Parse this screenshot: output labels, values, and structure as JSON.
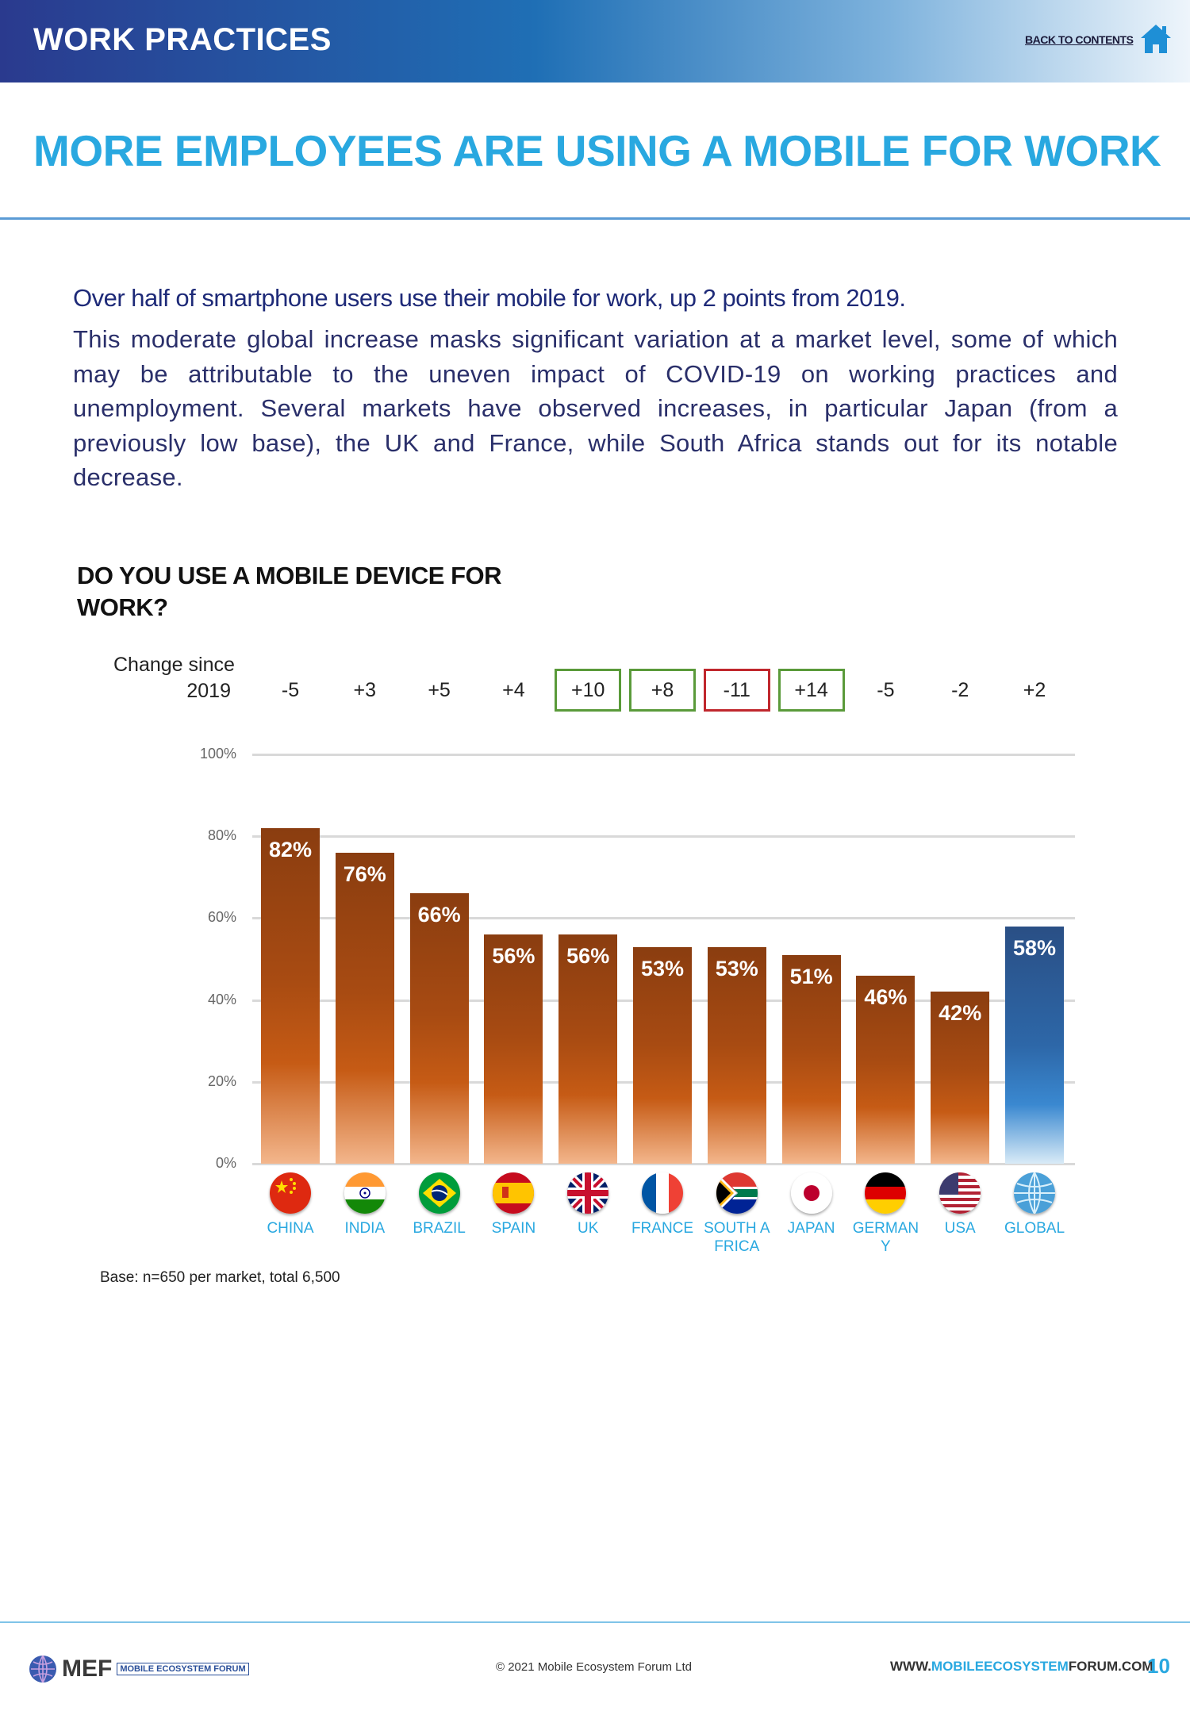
{
  "header": {
    "section_title": "WORK PRACTICES",
    "back_link": "BACK TO CONTENTS",
    "home_icon": "home-icon"
  },
  "page_title": "MORE EMPLOYEES ARE USING A MOBILE FOR WORK",
  "subhead": "Over half of smartphone users use their mobile for work, up 2 points from 2019.",
  "body": "This moderate global increase masks significant variation at a market level, some of which may be attributable to the uneven impact of COVID-19 on working practices and unemployment. Several markets have observed increases, in particular Japan (from a previously low base), the UK and France, while South Africa stands out for its notable decrease.",
  "change_label": {
    "line1": "Change since",
    "line2": "2019"
  },
  "chart_data": {
    "type": "bar",
    "title": "DO YOU USE A MOBILE DEVICE FOR WORK?",
    "categories": [
      "CHINA",
      "INDIA",
      "BRAZIL",
      "SPAIN",
      "UK",
      "FRANCE",
      "SOUTH AFRICA",
      "JAPAN",
      "GERMANY",
      "USA",
      "GLOBAL"
    ],
    "category_display": [
      "CHINA",
      "INDIA",
      "BRAZIL",
      "SPAIN",
      "UK",
      "FRANCE",
      "SOUTH AFRICA",
      "JAPAN",
      "GERMAN Y",
      "USA",
      "GLOBAL"
    ],
    "values": [
      82,
      76,
      66,
      56,
      56,
      53,
      53,
      51,
      46,
      42,
      58
    ],
    "data_labels": [
      "82%",
      "76%",
      "66%",
      "56%",
      "56%",
      "53%",
      "53%",
      "51%",
      "46%",
      "42%",
      "58%"
    ],
    "change_since_2019": [
      "-5",
      "+3",
      "+5",
      "+4",
      "+10",
      "+8",
      "-11",
      "+14",
      "-5",
      "-2",
      "+2"
    ],
    "change_highlight": [
      "none",
      "none",
      "none",
      "none",
      "green",
      "green",
      "red",
      "green",
      "none",
      "none",
      "none"
    ],
    "bar_colors": [
      "orange",
      "orange",
      "orange",
      "orange",
      "orange",
      "orange",
      "orange",
      "orange",
      "orange",
      "orange",
      "blue"
    ],
    "flag_icons": [
      "china-flag-icon",
      "india-flag-icon",
      "brazil-flag-icon",
      "spain-flag-icon",
      "uk-flag-icon",
      "france-flag-icon",
      "south-africa-flag-icon",
      "japan-flag-icon",
      "germany-flag-icon",
      "usa-flag-icon",
      "globe-icon"
    ],
    "y_ticks": [
      "0%",
      "20%",
      "40%",
      "60%",
      "80%",
      "100%"
    ],
    "ylim": [
      0,
      100
    ],
    "grid": true,
    "colors": {
      "orange": "#a84b12",
      "blue": "#2d67a8",
      "highlight_green": "#5a9a3a",
      "highlight_red": "#c0272d"
    }
  },
  "base_note": "Base: n=650 per market, total 6,500",
  "footer": {
    "logo_text": "MEF",
    "logo_sub": "MOBILE ECOSYSTEM FORUM",
    "copyright": "© 2021 Mobile Ecosystem Forum Ltd",
    "url_prefix": "WWW.",
    "url_highlight": "MOBILEECOSYSTEM",
    "url_suffix": "FORUM.COM",
    "page_number": "10"
  },
  "colors": {
    "accent": "#29a8e0",
    "header_dark": "#2a3a8e",
    "navy_text": "#1e2a78"
  }
}
